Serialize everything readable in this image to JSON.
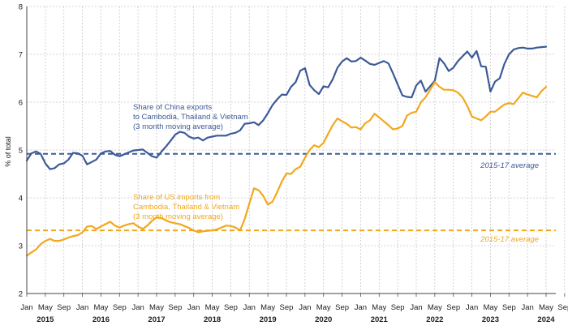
{
  "chart_data": {
    "type": "line",
    "ylabel": "% of total",
    "ylim": [
      2,
      8
    ],
    "yticks": [
      "2",
      "3",
      "4",
      "5",
      "6",
      "7",
      "8"
    ],
    "grid": true,
    "x_tick_labels": [
      "Jan",
      "May",
      "Sep",
      "Jan",
      "May",
      "Sep",
      "Jan",
      "May",
      "Sep",
      "Jan",
      "May",
      "Sep",
      "Jan",
      "May",
      "Sep",
      "Jan",
      "May",
      "Sep",
      "Jan",
      "May",
      "Sep",
      "Jan",
      "May",
      "Sep",
      "Jan",
      "May",
      "Sep",
      "Jan",
      "May",
      "Sep",
      "Jan",
      "May"
    ],
    "years": [
      "2015",
      "2016",
      "2017",
      "2018",
      "2019",
      "2020",
      "2021",
      "2022",
      "2023",
      "2024"
    ],
    "x": [
      "2015-01",
      "2015-02",
      "2015-03",
      "2015-04",
      "2015-05",
      "2015-06",
      "2015-07",
      "2015-08",
      "2015-09",
      "2015-10",
      "2015-11",
      "2015-12",
      "2016-01",
      "2016-02",
      "2016-03",
      "2016-04",
      "2016-05",
      "2016-06",
      "2016-07",
      "2016-08",
      "2016-09",
      "2016-10",
      "2016-11",
      "2016-12",
      "2017-01",
      "2017-02",
      "2017-03",
      "2017-04",
      "2017-05",
      "2017-06",
      "2017-07",
      "2017-08",
      "2017-09",
      "2017-10",
      "2017-11",
      "2017-12",
      "2018-01",
      "2018-02",
      "2018-03",
      "2018-04",
      "2018-05",
      "2018-06",
      "2018-07",
      "2018-08",
      "2018-09",
      "2018-10",
      "2018-11",
      "2018-12",
      "2019-01",
      "2019-02",
      "2019-03",
      "2019-04",
      "2019-05",
      "2019-06",
      "2019-07",
      "2019-08",
      "2019-09",
      "2019-10",
      "2019-11",
      "2019-12",
      "2020-01",
      "2020-02",
      "2020-03",
      "2020-04",
      "2020-05",
      "2020-06",
      "2020-07",
      "2020-08",
      "2020-09",
      "2020-10",
      "2020-11",
      "2020-12",
      "2021-01",
      "2021-02",
      "2021-03",
      "2021-04",
      "2021-05",
      "2021-06",
      "2021-07",
      "2021-08",
      "2021-09",
      "2021-10",
      "2021-11",
      "2021-12",
      "2022-01",
      "2022-02",
      "2022-03",
      "2022-04",
      "2022-05",
      "2022-06",
      "2022-07",
      "2022-08",
      "2022-09",
      "2022-10",
      "2022-11",
      "2022-12",
      "2023-01",
      "2023-02",
      "2023-03",
      "2023-04",
      "2023-05",
      "2023-06",
      "2023-07",
      "2023-08",
      "2023-09",
      "2023-10",
      "2023-11",
      "2023-12",
      "2024-01",
      "2024-02",
      "2024-03",
      "2024-04",
      "2024-05"
    ],
    "series": [
      {
        "label_lines": [
          "Share of China exports",
          "to Cambodia, Thailand & Vietnam",
          "(3 month moving average)"
        ],
        "color": "#3d5a98",
        "average_value": 4.92,
        "average_label": "2015-17 average",
        "values": [
          4.78,
          4.93,
          4.97,
          4.92,
          4.72,
          4.6,
          4.62,
          4.7,
          4.72,
          4.8,
          4.94,
          4.93,
          4.88,
          4.7,
          4.75,
          4.8,
          4.93,
          4.97,
          4.98,
          4.9,
          4.87,
          4.91,
          4.95,
          4.99,
          5.0,
          5.01,
          4.94,
          4.87,
          4.84,
          4.96,
          5.07,
          5.19,
          5.32,
          5.38,
          5.36,
          5.28,
          5.24,
          5.26,
          5.2,
          5.26,
          5.28,
          5.3,
          5.3,
          5.3,
          5.34,
          5.36,
          5.41,
          5.55,
          5.56,
          5.58,
          5.52,
          5.62,
          5.77,
          5.94,
          6.06,
          6.16,
          6.15,
          6.32,
          6.42,
          6.66,
          6.71,
          6.36,
          6.25,
          6.17,
          6.33,
          6.31,
          6.48,
          6.72,
          6.85,
          6.92,
          6.85,
          6.86,
          6.93,
          6.87,
          6.8,
          6.78,
          6.82,
          6.86,
          6.81,
          6.6,
          6.37,
          6.14,
          6.11,
          6.1,
          6.35,
          6.45,
          6.22,
          6.33,
          6.45,
          6.92,
          6.81,
          6.65,
          6.72,
          6.86,
          6.96,
          7.06,
          6.93,
          7.07,
          6.75,
          6.74,
          6.22,
          6.43,
          6.5,
          6.8,
          7.0,
          7.1,
          7.13,
          7.14,
          7.12,
          7.12,
          7.14,
          7.15,
          7.16
        ]
      },
      {
        "label_lines": [
          "Share of US imports from",
          "Cambodia, Thailand & Vietnam",
          "(3 month moving average)"
        ],
        "color": "#f2a81d",
        "average_value": 3.32,
        "average_label": "2015-17 average",
        "values": [
          2.79,
          2.86,
          2.92,
          3.03,
          3.1,
          3.14,
          3.1,
          3.1,
          3.13,
          3.17,
          3.2,
          3.22,
          3.28,
          3.4,
          3.41,
          3.35,
          3.4,
          3.45,
          3.5,
          3.42,
          3.38,
          3.42,
          3.45,
          3.47,
          3.4,
          3.35,
          3.42,
          3.52,
          3.59,
          3.58,
          3.53,
          3.49,
          3.47,
          3.45,
          3.41,
          3.37,
          3.32,
          3.28,
          3.3,
          3.31,
          3.32,
          3.34,
          3.38,
          3.42,
          3.41,
          3.38,
          3.32,
          3.56,
          3.88,
          4.2,
          4.16,
          4.04,
          3.86,
          3.92,
          4.12,
          4.34,
          4.51,
          4.5,
          4.6,
          4.65,
          4.84,
          5.0,
          5.1,
          5.06,
          5.15,
          5.34,
          5.52,
          5.66,
          5.6,
          5.55,
          5.47,
          5.48,
          5.43,
          5.56,
          5.62,
          5.76,
          5.68,
          5.6,
          5.52,
          5.43,
          5.45,
          5.5,
          5.72,
          5.78,
          5.8,
          6.0,
          6.1,
          6.26,
          6.42,
          6.32,
          6.26,
          6.26,
          6.25,
          6.2,
          6.1,
          5.92,
          5.7,
          5.66,
          5.62,
          5.7,
          5.8,
          5.8,
          5.88,
          5.95,
          5.98,
          5.96,
          6.08,
          6.2,
          6.16,
          6.13,
          6.1,
          6.23,
          6.32
        ]
      }
    ]
  }
}
